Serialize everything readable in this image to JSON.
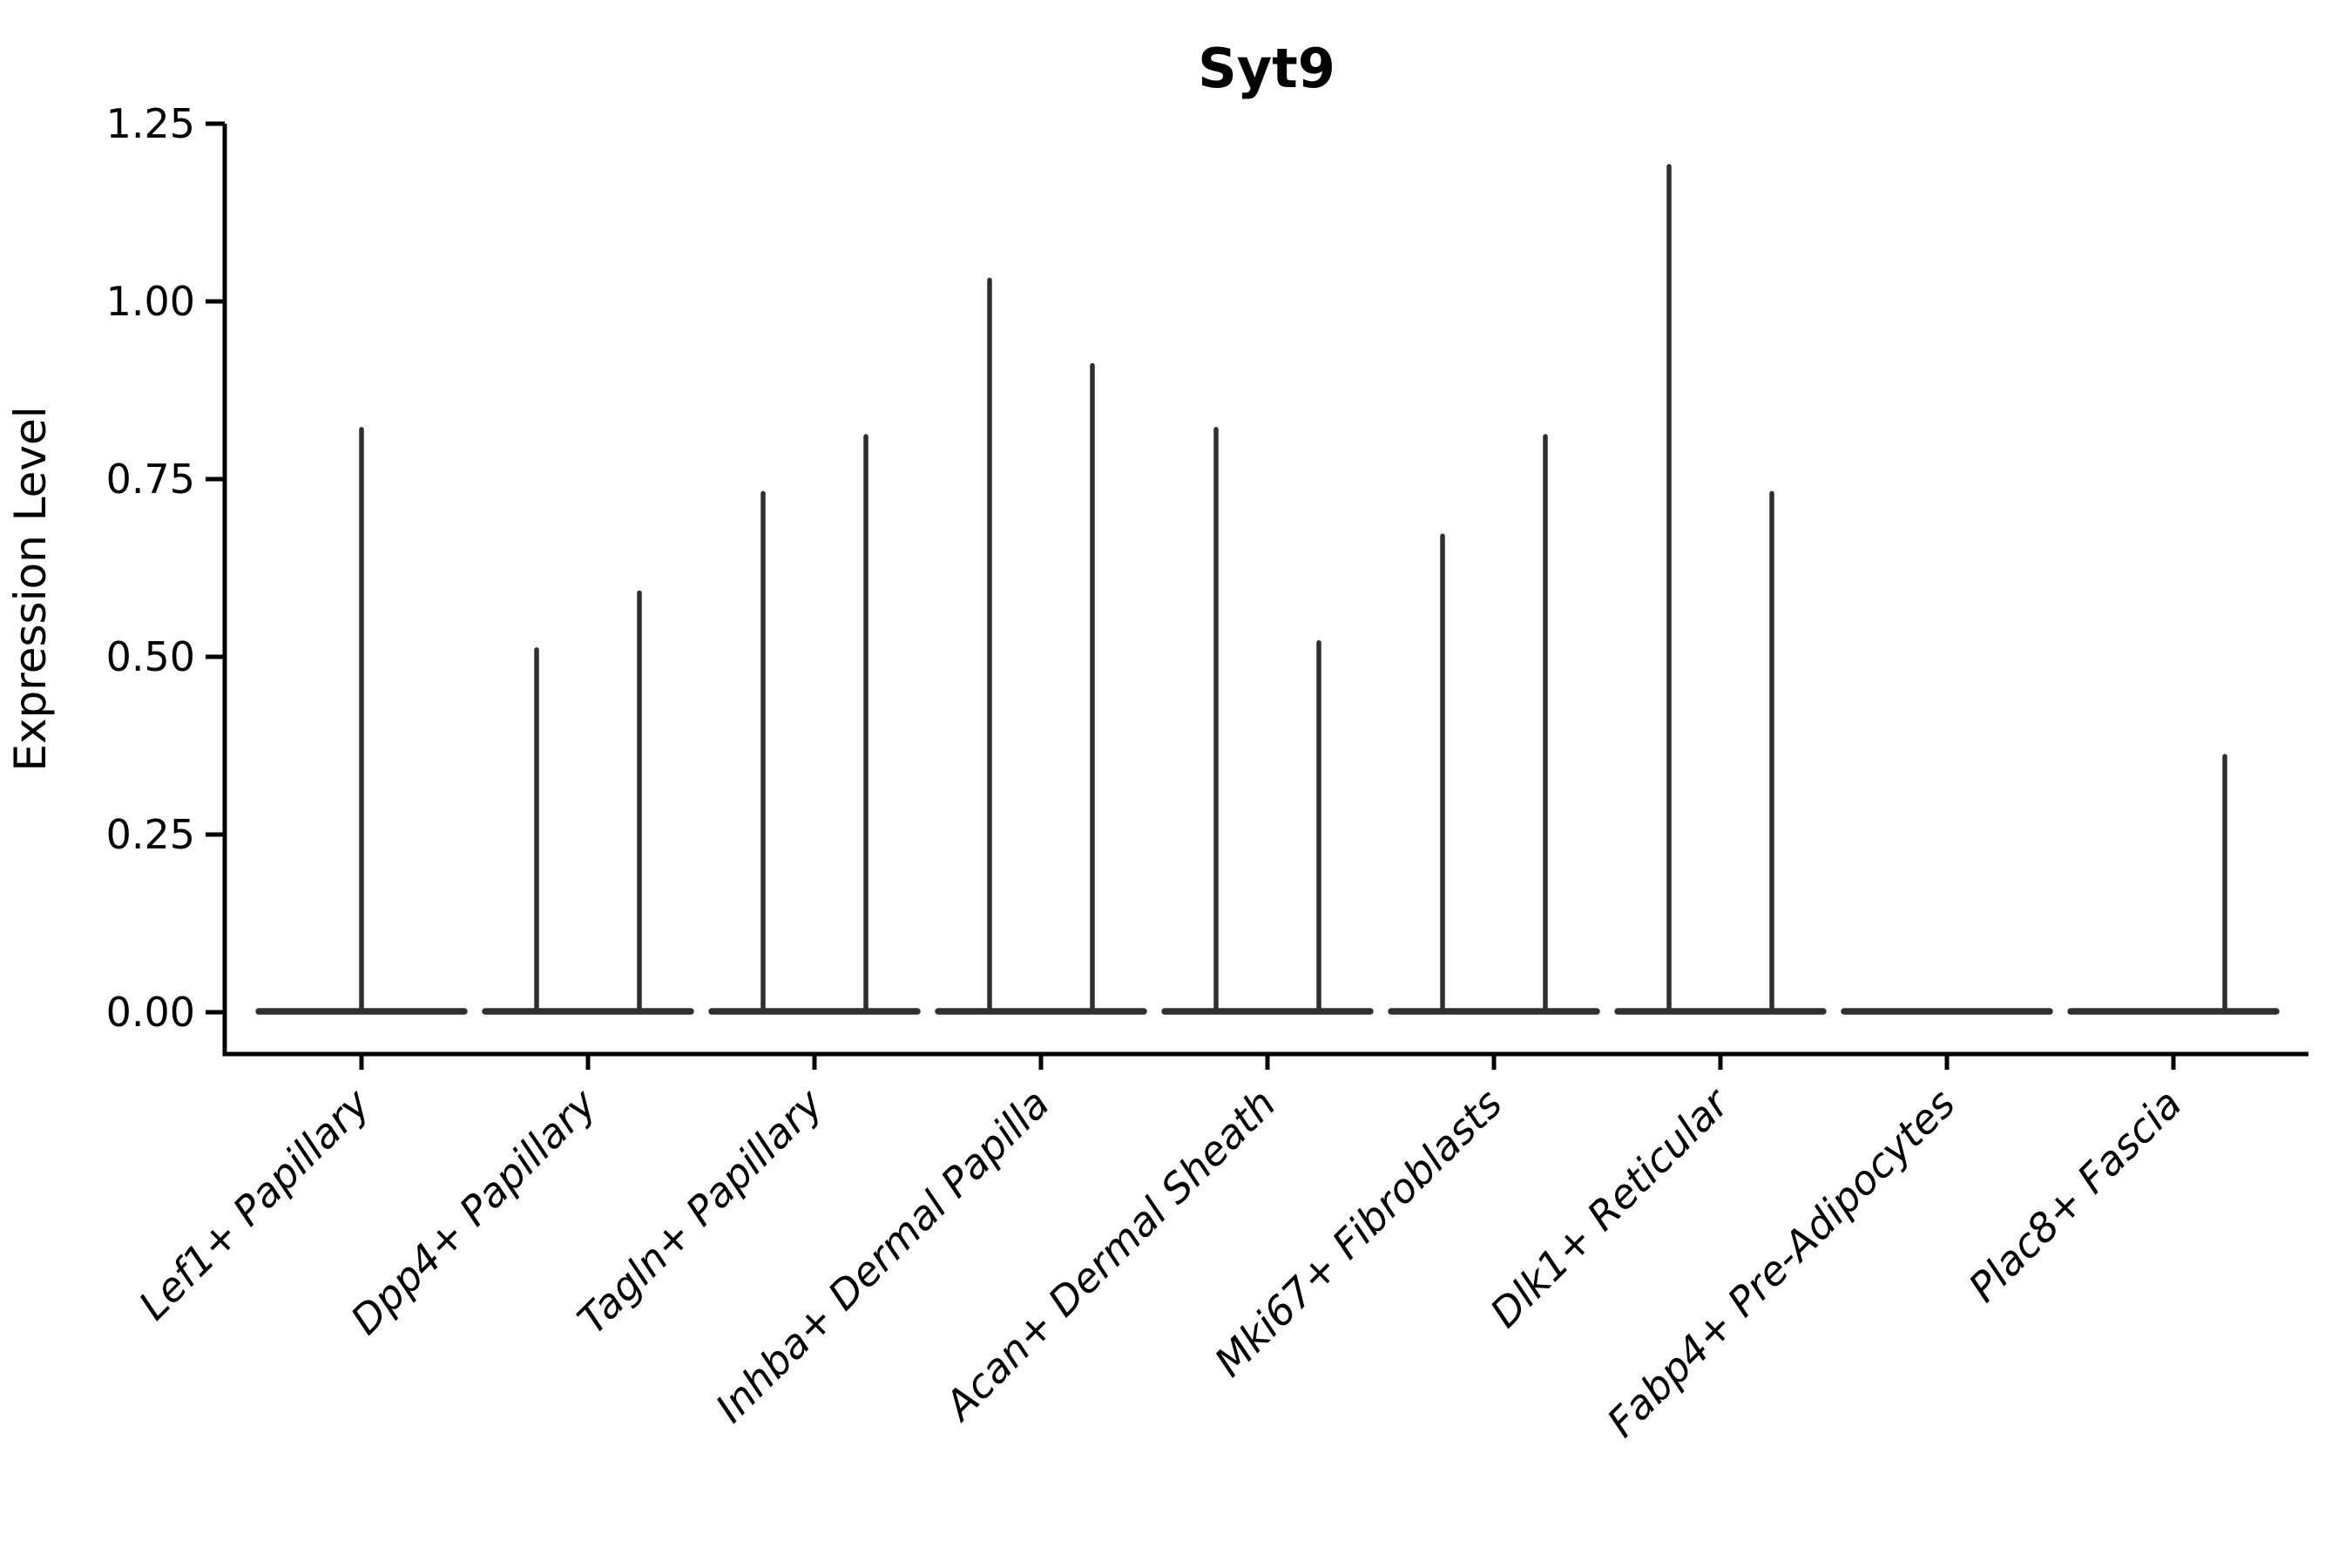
{
  "page": {
    "background": "#ffffff"
  },
  "chart_data": {
    "type": "violin",
    "title": "Syt9",
    "ylabel": "Expression Level",
    "xlabel": "",
    "grid": false,
    "legend": "none",
    "ylim": [
      -0.06,
      1.31
    ],
    "yticks": [
      {
        "value": 0.0,
        "label": "0.00"
      },
      {
        "value": 0.25,
        "label": "0.25"
      },
      {
        "value": 0.5,
        "label": "0.50"
      },
      {
        "value": 0.75,
        "label": "0.75"
      },
      {
        "value": 1.0,
        "label": "1.00"
      },
      {
        "value": 1.25,
        "label": "1.25"
      }
    ],
    "categories": [
      "Lef1+ Papillary",
      "Dpp4+ Papillary",
      "Tagln+ Papillary",
      "Inhba+ Dermal Papilla",
      "Acan+ Dermal Sheath",
      "Mki67+ Fibroblasts",
      "Dlk1+ Reticular",
      "Fabp4+ Pre-Adipocytes",
      "Plac8+ Fascia"
    ],
    "series": [
      {
        "category": "Lef1+ Papillary",
        "baseline": 0,
        "spikes": [
          {
            "side": "center",
            "max": 0.82
          }
        ]
      },
      {
        "category": "Dpp4+ Papillary",
        "baseline": 0,
        "spikes": [
          {
            "side": "left",
            "max": 0.51
          },
          {
            "side": "right",
            "max": 0.59
          }
        ]
      },
      {
        "category": "Tagln+ Papillary",
        "baseline": 0,
        "spikes": [
          {
            "side": "left",
            "max": 0.73
          },
          {
            "side": "right",
            "max": 0.81
          }
        ]
      },
      {
        "category": "Inhba+ Dermal Papilla",
        "baseline": 0,
        "spikes": [
          {
            "side": "left",
            "max": 1.03
          },
          {
            "side": "right",
            "max": 0.91
          }
        ]
      },
      {
        "category": "Acan+ Dermal Sheath",
        "baseline": 0,
        "spikes": [
          {
            "side": "left",
            "max": 0.82
          },
          {
            "side": "right",
            "max": 0.52
          }
        ]
      },
      {
        "category": "Mki67+ Fibroblasts",
        "baseline": 0,
        "spikes": [
          {
            "side": "left",
            "max": 0.67
          },
          {
            "side": "right",
            "max": 0.81
          }
        ]
      },
      {
        "category": "Dlk1+ Reticular",
        "baseline": 0,
        "spikes": [
          {
            "side": "left",
            "max": 1.19
          },
          {
            "side": "right",
            "max": 0.73
          }
        ]
      },
      {
        "category": "Fabp4+ Pre-Adipocytes",
        "baseline": 0,
        "spikes": []
      },
      {
        "category": "Plac8+ Fascia",
        "baseline": 0,
        "spikes": [
          {
            "side": "right",
            "max": 0.36
          }
        ]
      }
    ],
    "colors": {
      "violin": "#2f2f2f",
      "axis": "#000000",
      "text": "#000000",
      "background": "#ffffff"
    }
  }
}
